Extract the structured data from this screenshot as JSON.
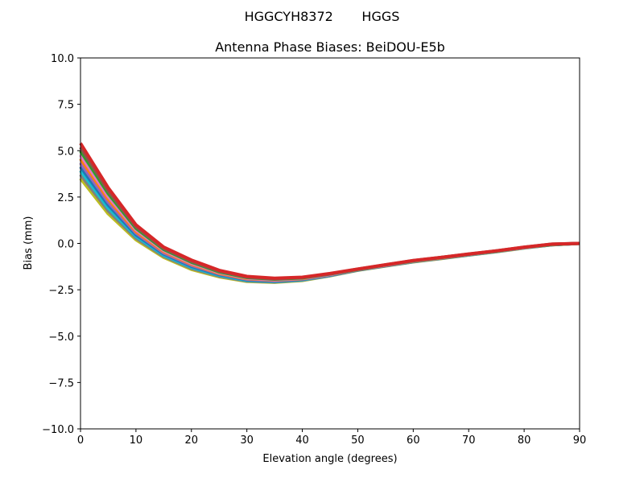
{
  "chart_data": {
    "type": "line",
    "suptitle": "HGGCYH8372       HGGS",
    "title": "Antenna Phase Biases: BeiDOU-E5b",
    "xlabel": "Elevation angle (degrees)",
    "ylabel": "Bias (mm)",
    "xlim": [
      0,
      90
    ],
    "ylim": [
      -10,
      10
    ],
    "xticks": [
      0,
      10,
      20,
      30,
      40,
      50,
      60,
      70,
      80,
      90
    ],
    "xtick_labels": [
      "0",
      "10",
      "20",
      "30",
      "40",
      "50",
      "60",
      "70",
      "80",
      "90"
    ],
    "yticks": [
      -10,
      -7.5,
      -5,
      -2.5,
      0,
      2.5,
      5,
      7.5,
      10
    ],
    "ytick_labels": [
      "−10.0",
      "−7.5",
      "−5.0",
      "−2.5",
      "0.0",
      "2.5",
      "5.0",
      "7.5",
      "10.0"
    ],
    "grid": false,
    "x": [
      0,
      5,
      10,
      15,
      20,
      25,
      30,
      35,
      40,
      45,
      50,
      55,
      60,
      65,
      70,
      75,
      80,
      85,
      90
    ],
    "colors": [
      "#bcbd22",
      "#7f7f7f",
      "#17becf",
      "#1f77b4",
      "#9467bd",
      "#ff7f0e",
      "#e377c2",
      "#2ca02c",
      "#8c564b",
      "#d62728"
    ],
    "series": [
      {
        "values": [
          3.5,
          1.6,
          0.2,
          -0.75,
          -1.4,
          -1.8,
          -2.05,
          -2.1,
          -2.0,
          -1.75,
          -1.45,
          -1.22,
          -1.0,
          -0.82,
          -0.63,
          -0.45,
          -0.25,
          -0.08,
          0
        ]
      },
      {
        "values": [
          3.71,
          1.76,
          0.29,
          -0.69,
          -1.34,
          -1.76,
          -2.02,
          -2.08,
          -1.98,
          -1.74,
          -1.44,
          -1.21,
          -0.99,
          -0.81,
          -0.62,
          -0.44,
          -0.24,
          -0.08,
          0
        ]
      },
      {
        "values": [
          3.92,
          1.91,
          0.38,
          -0.63,
          -1.29,
          -1.72,
          -1.99,
          -2.05,
          -1.96,
          -1.72,
          -1.43,
          -1.2,
          -0.98,
          -0.8,
          -0.62,
          -0.44,
          -0.24,
          -0.07,
          0
        ]
      },
      {
        "values": [
          4.13,
          2.07,
          0.47,
          -0.57,
          -1.23,
          -1.68,
          -1.96,
          -2.03,
          -1.94,
          -1.71,
          -1.43,
          -1.2,
          -0.97,
          -0.8,
          -0.61,
          -0.43,
          -0.23,
          -0.07,
          0
        ]
      },
      {
        "values": [
          4.34,
          2.22,
          0.56,
          -0.51,
          -1.18,
          -1.64,
          -1.93,
          -2.0,
          -1.92,
          -1.69,
          -1.42,
          -1.19,
          -0.96,
          -0.79,
          -0.6,
          -0.43,
          -0.23,
          -0.06,
          0
        ]
      },
      {
        "values": [
          4.56,
          2.38,
          0.64,
          -0.44,
          -1.12,
          -1.61,
          -1.9,
          -1.98,
          -1.9,
          -1.68,
          -1.41,
          -1.18,
          -0.96,
          -0.78,
          -0.6,
          -0.42,
          -0.22,
          -0.06,
          0
        ]
      },
      {
        "values": [
          4.77,
          2.53,
          0.73,
          -0.38,
          -1.07,
          -1.57,
          -1.87,
          -1.96,
          -1.88,
          -1.67,
          -1.4,
          -1.17,
          -0.95,
          -0.77,
          -0.59,
          -0.41,
          -0.22,
          -0.05,
          0
        ]
      },
      {
        "values": [
          4.98,
          2.69,
          0.82,
          -0.32,
          -1.01,
          -1.53,
          -1.84,
          -1.93,
          -1.86,
          -1.65,
          -1.4,
          -1.16,
          -0.94,
          -0.76,
          -0.58,
          -0.41,
          -0.21,
          -0.05,
          0
        ]
      },
      {
        "values": [
          5.19,
          2.84,
          0.91,
          -0.26,
          -0.96,
          -1.49,
          -1.81,
          -1.91,
          -1.84,
          -1.64,
          -1.39,
          -1.16,
          -0.93,
          -0.76,
          -0.58,
          -0.4,
          -0.21,
          -0.04,
          0
        ]
      },
      {
        "values": [
          5.4,
          3.0,
          1.0,
          -0.2,
          -0.9,
          -1.45,
          -1.78,
          -1.88,
          -1.82,
          -1.62,
          -1.38,
          -1.15,
          -0.92,
          -0.75,
          -0.57,
          -0.4,
          -0.2,
          -0.04,
          0
        ]
      }
    ]
  }
}
